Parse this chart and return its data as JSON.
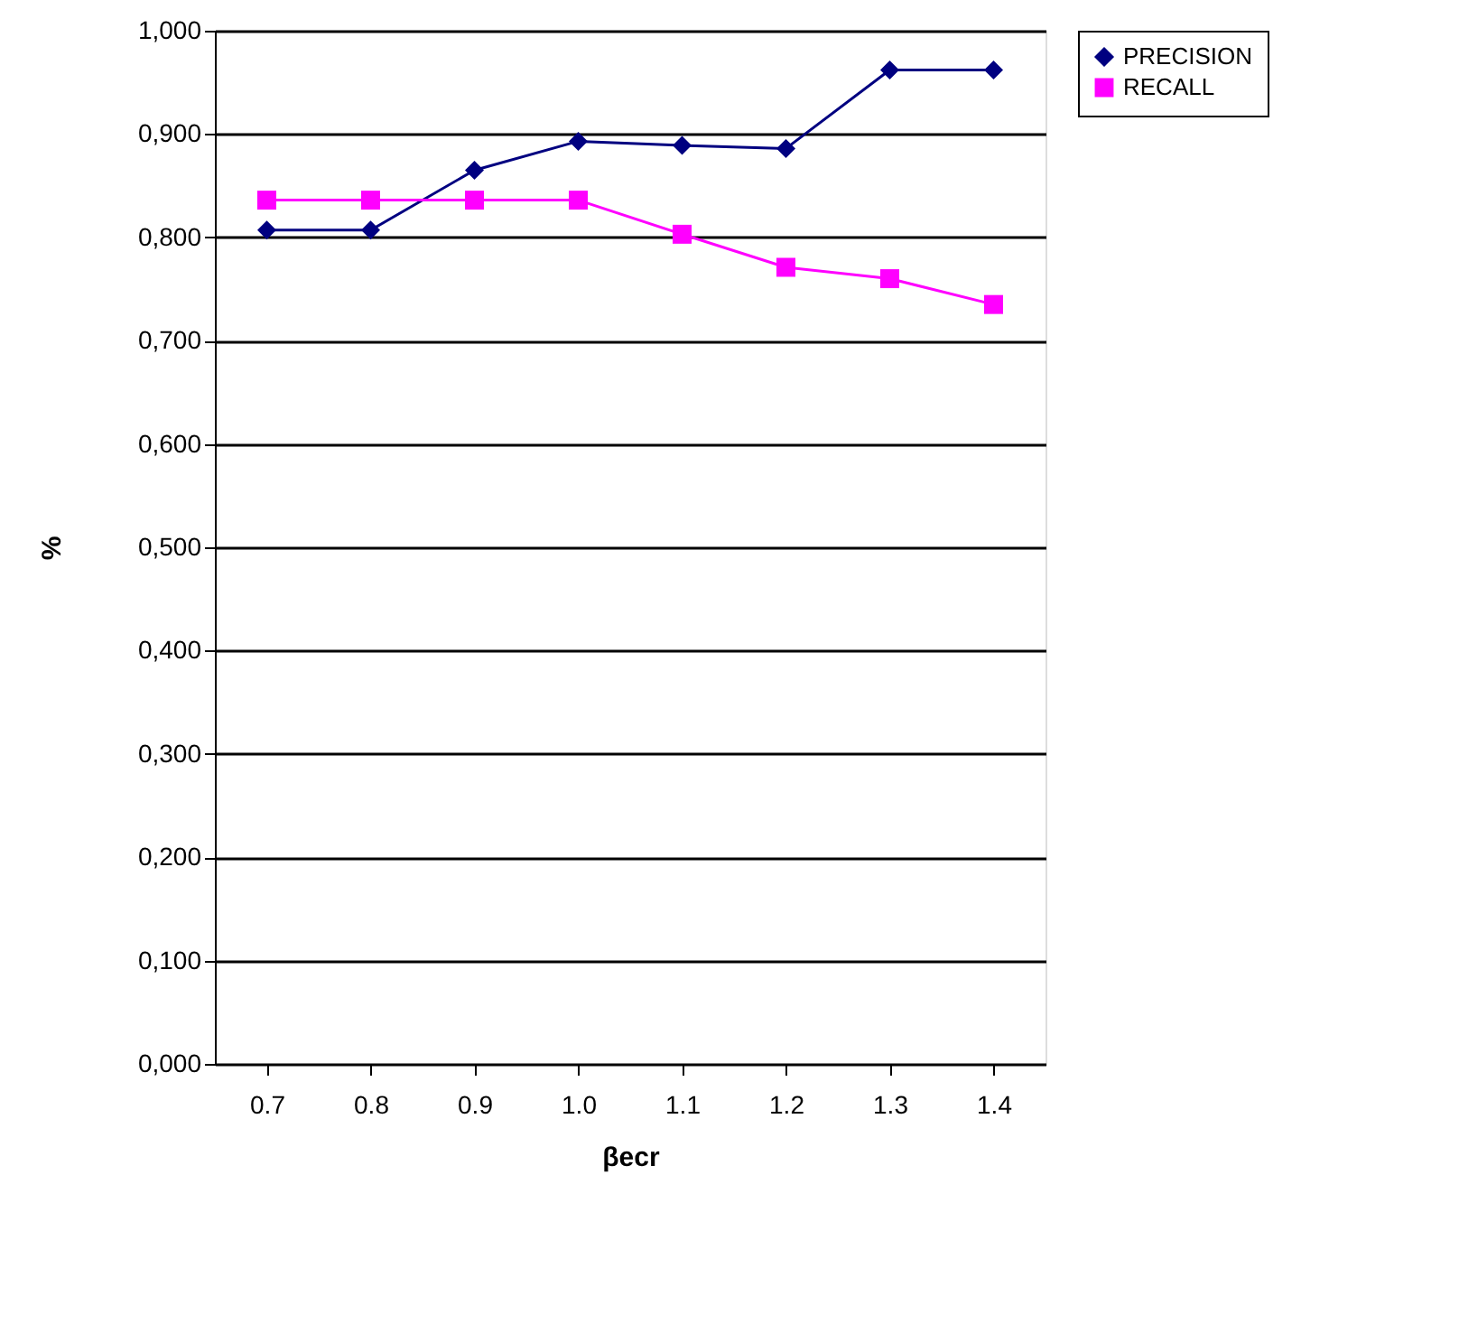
{
  "chart_data": {
    "type": "line",
    "xlabel": "βecr",
    "ylabel": "%",
    "categories": [
      "0.7",
      "0.8",
      "0.9",
      "1.0",
      "1.1",
      "1.2",
      "1.3",
      "1.4"
    ],
    "series": [
      {
        "name": "PRECISION",
        "color": "#000080",
        "marker": "diamond",
        "values": [
          0.807,
          0.807,
          0.865,
          0.893,
          0.889,
          0.886,
          0.962,
          0.962
        ]
      },
      {
        "name": "RECALL",
        "color": "#ff00ff",
        "marker": "square",
        "values": [
          0.836,
          0.836,
          0.836,
          0.836,
          0.803,
          0.771,
          0.76,
          0.735
        ]
      }
    ],
    "ylim": [
      0,
      1
    ],
    "yticks": [
      {
        "value": 0,
        "label": "0,000"
      },
      {
        "value": 0.1,
        "label": "0,100"
      },
      {
        "value": 0.2,
        "label": "0,200"
      },
      {
        "value": 0.3,
        "label": "0,300"
      },
      {
        "value": 0.4,
        "label": "0,400"
      },
      {
        "value": 0.5,
        "label": "0,500"
      },
      {
        "value": 0.6,
        "label": "0,600"
      },
      {
        "value": 0.7,
        "label": "0,700"
      },
      {
        "value": 0.8,
        "label": "0,800"
      },
      {
        "value": 0.9,
        "label": "0,900"
      },
      {
        "value": 1,
        "label": "1,000"
      }
    ],
    "grid": "y",
    "legend": "right",
    "line_style": "solid"
  }
}
